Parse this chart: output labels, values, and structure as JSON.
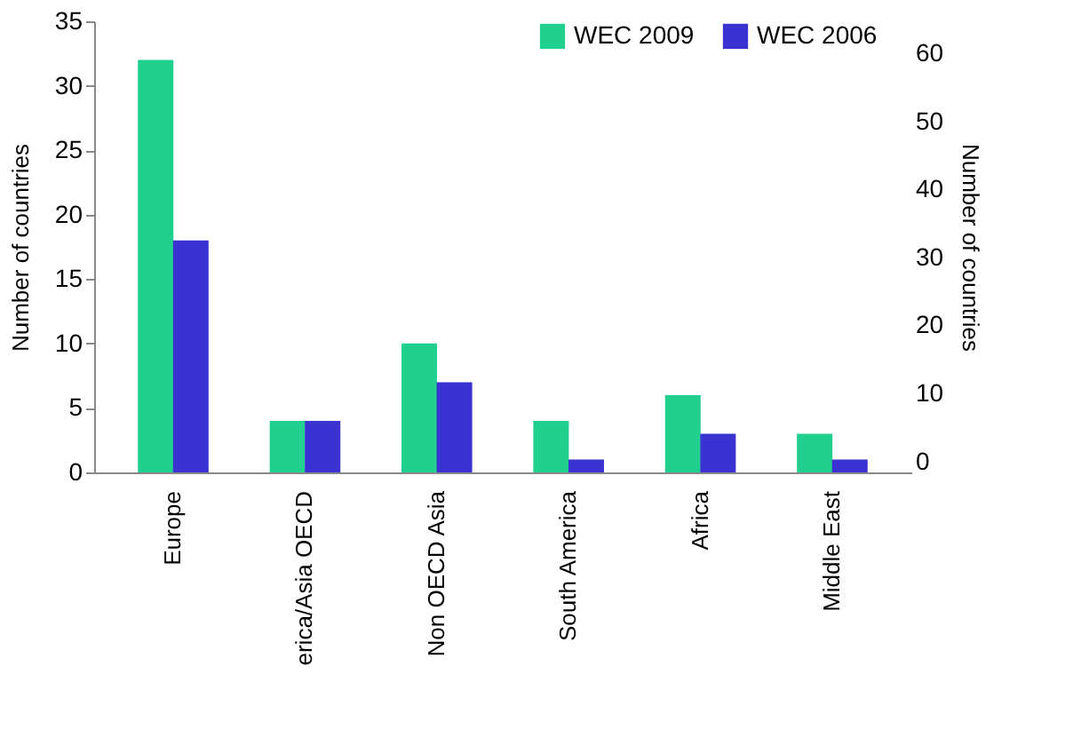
{
  "chart_data": {
    "type": "bar",
    "ylabel": "Number of countries",
    "y2label": "Number of countries",
    "categories": [
      "Europe",
      "erica/Asia OECD",
      "Non OECD Asia",
      "South America",
      "Africa",
      "Middle East"
    ],
    "series": [
      {
        "name": "WEC 2009",
        "color": "#21d08e",
        "values": [
          32,
          4,
          10,
          4,
          6,
          3
        ]
      },
      {
        "name": "WEC 2006",
        "color": "#3b33d1",
        "values": [
          18,
          4,
          7,
          1,
          3,
          1
        ]
      }
    ],
    "ylim": [
      0,
      35
    ],
    "yticks": [
      0,
      5,
      10,
      15,
      20,
      25,
      30,
      35
    ],
    "y2lim": [
      -1.6,
      64.7
    ],
    "y2ticks": [
      0,
      10,
      20,
      30,
      40,
      50,
      60
    ],
    "grid": false,
    "legend": "top right"
  }
}
